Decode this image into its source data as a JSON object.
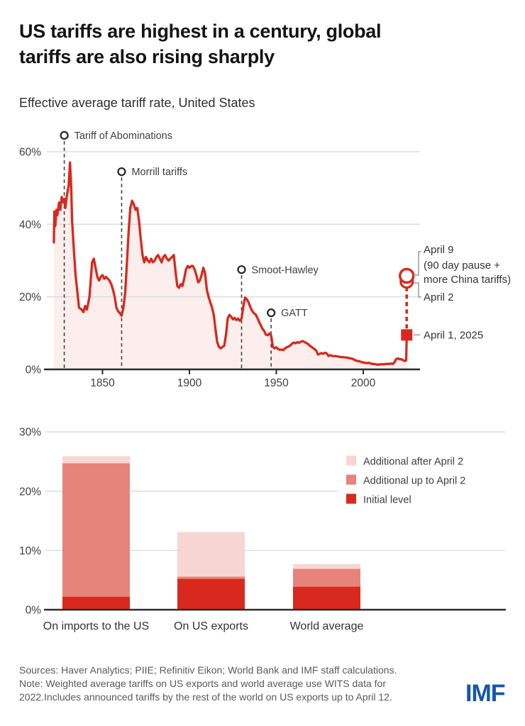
{
  "title": {
    "line1": "US tariffs are highest in a century, global",
    "line2": "tariffs are also rising sharply"
  },
  "subtitle": "Effective average tariff rate, United States",
  "colors": {
    "line_red": "#d7291d",
    "area_fill": "#fbeeec",
    "bar_initial": "#d7291d",
    "bar_up_to_apr2": "#e6837a",
    "bar_after_apr2": "#f7d5d2",
    "gridline": "#d8d8d8",
    "axis": "#2b2b2b",
    "event_dash": "#4d4d4d",
    "connector_gray": "#9b9b9b",
    "text_dark": "#333333",
    "imf_blue": "#1757a6"
  },
  "chart_data": [
    {
      "type": "area",
      "title": "Effective average tariff rate, United States",
      "xlabel": "",
      "ylabel": "Effective average tariff rate (%)",
      "xlim": [
        1820,
        2032
      ],
      "ylim": [
        0,
        65
      ],
      "yticks": [
        0,
        20,
        40,
        60
      ],
      "ytick_labels": [
        "0%",
        "20%",
        "40%",
        "60%"
      ],
      "xticks": [
        1850,
        1900,
        1950,
        2000
      ],
      "grid": "horizontal",
      "series": [
        {
          "name": "Effective average tariff rate, United States",
          "points": [
            [
              1822,
              35
            ],
            [
              1822.3,
              43.5
            ],
            [
              1822.8,
              39.5
            ],
            [
              1823.5,
              44
            ],
            [
              1824,
              42.5
            ],
            [
              1825,
              46
            ],
            [
              1825.7,
              44
            ],
            [
              1826.5,
              47.5
            ],
            [
              1827.5,
              46
            ],
            [
              1828,
              47
            ],
            [
              1828.6,
              44.5
            ],
            [
              1829.5,
              48
            ],
            [
              1830.5,
              50.5
            ],
            [
              1831.3,
              57
            ],
            [
              1832,
              50
            ],
            [
              1832.5,
              41
            ],
            [
              1833.5,
              33
            ],
            [
              1834.5,
              26
            ],
            [
              1835.5,
              21.5
            ],
            [
              1836.5,
              17
            ],
            [
              1838,
              16.5
            ],
            [
              1839,
              15.8
            ],
            [
              1840,
              17.5
            ],
            [
              1841,
              16.5
            ],
            [
              1842.5,
              20
            ],
            [
              1844,
              29.5
            ],
            [
              1845,
              30.5
            ],
            [
              1846,
              28
            ],
            [
              1847,
              25.5
            ],
            [
              1848,
              24.5
            ],
            [
              1849,
              25.5
            ],
            [
              1850,
              26
            ],
            [
              1851,
              25
            ],
            [
              1852,
              25.5
            ],
            [
              1853,
              25
            ],
            [
              1854,
              24.5
            ],
            [
              1855,
              23.5
            ],
            [
              1856,
              22
            ],
            [
              1857,
              20
            ],
            [
              1858,
              17
            ],
            [
              1859,
              16
            ],
            [
              1860,
              15.5
            ],
            [
              1861,
              14.8
            ],
            [
              1862,
              17
            ],
            [
              1863,
              21
            ],
            [
              1864,
              29
            ],
            [
              1865,
              38
            ],
            [
              1866,
              44.5
            ],
            [
              1867,
              46.5
            ],
            [
              1868,
              45.5
            ],
            [
              1869,
              44
            ],
            [
              1870,
              44.5
            ],
            [
              1871,
              41
            ],
            [
              1872,
              36
            ],
            [
              1873,
              31.5
            ],
            [
              1874,
              29.5
            ],
            [
              1875,
              31
            ],
            [
              1876,
              30
            ],
            [
              1877,
              29.5
            ],
            [
              1878,
              30.5
            ],
            [
              1879,
              29.5
            ],
            [
              1880,
              30
            ],
            [
              1881,
              31
            ],
            [
              1882,
              31.5
            ],
            [
              1883,
              30.5
            ],
            [
              1884,
              29.5
            ],
            [
              1885,
              31
            ],
            [
              1886,
              31.5
            ],
            [
              1887,
              30.5
            ],
            [
              1888,
              30
            ],
            [
              1889,
              30.5
            ],
            [
              1890,
              31
            ],
            [
              1891,
              31.5
            ],
            [
              1892,
              27
            ],
            [
              1893,
              23
            ],
            [
              1894,
              22.5
            ],
            [
              1895,
              23.5
            ],
            [
              1896,
              23
            ],
            [
              1897,
              25
            ],
            [
              1898,
              27.5
            ],
            [
              1899,
              28.5
            ],
            [
              1900,
              28
            ],
            [
              1901,
              28.5
            ],
            [
              1902,
              28.5
            ],
            [
              1903,
              27.5
            ],
            [
              1904,
              26
            ],
            [
              1905,
              24
            ],
            [
              1906,
              24.5
            ],
            [
              1907,
              26
            ],
            [
              1908,
              28
            ],
            [
              1909,
              26.5
            ],
            [
              1910,
              22
            ],
            [
              1911,
              20
            ],
            [
              1912,
              18.5
            ],
            [
              1913,
              17
            ],
            [
              1914,
              15
            ],
            [
              1915,
              11
            ],
            [
              1916,
              7.5
            ],
            [
              1917,
              6.2
            ],
            [
              1918,
              5.8
            ],
            [
              1919,
              6.2
            ],
            [
              1920,
              6.5
            ],
            [
              1921,
              9.5
            ],
            [
              1922,
              14
            ],
            [
              1923,
              15
            ],
            [
              1924,
              14.5
            ],
            [
              1925,
              13.8
            ],
            [
              1926,
              14.2
            ],
            [
              1927,
              13.6
            ],
            [
              1928,
              14
            ],
            [
              1929,
              13.4
            ],
            [
              1930,
              14
            ],
            [
              1931,
              17.5
            ],
            [
              1932,
              19.8
            ],
            [
              1933,
              19.3
            ],
            [
              1934,
              18.5
            ],
            [
              1935,
              17.2
            ],
            [
              1936,
              16.2
            ],
            [
              1937,
              15.5
            ],
            [
              1938,
              15.2
            ],
            [
              1939,
              14.3
            ],
            [
              1940,
              13.2
            ],
            [
              1941,
              12.2
            ],
            [
              1942,
              11.2
            ],
            [
              1943,
              10.6
            ],
            [
              1944,
              9.6
            ],
            [
              1945,
              9.4
            ],
            [
              1946,
              9.9
            ],
            [
              1947,
              9.3
            ],
            [
              1948,
              6.2
            ],
            [
              1949,
              5.8
            ],
            [
              1950,
              6.1
            ],
            [
              1951,
              5.6
            ],
            [
              1952,
              5.4
            ],
            [
              1953,
              5.5
            ],
            [
              1954,
              5.3
            ],
            [
              1955,
              5.8
            ],
            [
              1956,
              6.1
            ],
            [
              1957,
              6.3
            ],
            [
              1958,
              6.6
            ],
            [
              1959,
              7.1
            ],
            [
              1960,
              7.4
            ],
            [
              1961,
              7.2
            ],
            [
              1962,
              7.5
            ],
            [
              1963,
              7.3
            ],
            [
              1964,
              7.6
            ],
            [
              1965,
              7.8
            ],
            [
              1966,
              7.6
            ],
            [
              1967,
              7.3
            ],
            [
              1968,
              7.1
            ],
            [
              1969,
              6.6
            ],
            [
              1970,
              6.3
            ],
            [
              1971,
              5.9
            ],
            [
              1972,
              5.6
            ],
            [
              1973,
              5.1
            ],
            [
              1974,
              4.1
            ],
            [
              1975,
              4.3
            ],
            [
              1976,
              4.5
            ],
            [
              1977,
              4.3
            ],
            [
              1978,
              4.6
            ],
            [
              1979,
              4.4
            ],
            [
              1980,
              3.7
            ],
            [
              1981,
              3.9
            ],
            [
              1982,
              3.8
            ],
            [
              1983,
              3.6
            ],
            [
              1984,
              3.7
            ],
            [
              1985,
              3.6
            ],
            [
              1986,
              3.5
            ],
            [
              1987,
              3.4
            ],
            [
              1988,
              3.4
            ],
            [
              1989,
              3.3
            ],
            [
              1990,
              3.3
            ],
            [
              1991,
              3.2
            ],
            [
              1992,
              3.1
            ],
            [
              1993,
              3.0
            ],
            [
              1994,
              2.9
            ],
            [
              1995,
              2.6
            ],
            [
              1996,
              2.4
            ],
            [
              1997,
              2.3
            ],
            [
              1998,
              2.2
            ],
            [
              1999,
              2.0
            ],
            [
              2000,
              1.9
            ],
            [
              2001,
              1.8
            ],
            [
              2002,
              1.7
            ],
            [
              2003,
              1.8
            ],
            [
              2004,
              1.7
            ],
            [
              2005,
              1.5
            ],
            [
              2006,
              1.5
            ],
            [
              2007,
              1.4
            ],
            [
              2008,
              1.3
            ],
            [
              2009,
              1.3
            ],
            [
              2010,
              1.4
            ],
            [
              2011,
              1.4
            ],
            [
              2012,
              1.4
            ],
            [
              2013,
              1.5
            ],
            [
              2014,
              1.5
            ],
            [
              2015,
              1.5
            ],
            [
              2016,
              1.6
            ],
            [
              2017,
              1.5
            ],
            [
              2018,
              2.0
            ],
            [
              2019,
              2.9
            ],
            [
              2020,
              3.0
            ],
            [
              2021,
              2.8
            ],
            [
              2022,
              2.8
            ],
            [
              2023,
              2.5
            ],
            [
              2024,
              2.3
            ],
            [
              2024.7,
              2.5
            ],
            [
              2025,
              9.5
            ]
          ]
        }
      ],
      "events": [
        {
          "year": 1828,
          "label": "Tariff of Abominations",
          "marker_pct": 64.5
        },
        {
          "year": 1861,
          "label": "Morrill tariffs",
          "marker_pct": 54.5
        },
        {
          "year": 1930,
          "label": "Smoot-Hawley",
          "marker_pct": 27.5
        },
        {
          "year": 1947,
          "label": "GATT",
          "marker_pct": 15.6
        }
      ],
      "april_markers": {
        "year": 2025,
        "april1": {
          "value": 9.5,
          "label": "April 1, 2025"
        },
        "april2": {
          "value": 24.2,
          "label": "April 2"
        },
        "april9": {
          "value": 25.8,
          "label": "April 9",
          "sublabel1": "(90 day pause +",
          "sublabel2": "more China tariffs)"
        }
      }
    },
    {
      "type": "bar",
      "stacked": true,
      "categories": [
        "On imports to the US",
        "On US exports",
        "World average"
      ],
      "series": [
        {
          "name": "Initial level",
          "values": [
            2.2,
            5.2,
            3.9
          ]
        },
        {
          "name": "Additional up to April 2",
          "values": [
            22.5,
            0.4,
            3.0
          ]
        },
        {
          "name": "Additional after April 2",
          "values": [
            1.2,
            7.5,
            0.8
          ]
        }
      ],
      "totals": [
        25.9,
        13.1,
        7.7
      ],
      "ylim": [
        0,
        32
      ],
      "yticks": [
        0,
        10,
        20,
        30
      ],
      "ytick_labels": [
        "0%",
        "10%",
        "20%",
        "30%"
      ],
      "grid": "horizontal",
      "legend_position": "upper right",
      "legend": [
        {
          "label": "Additional after April 2",
          "color_key": "bar_after_apr2"
        },
        {
          "label": "Additional up to April 2",
          "color_key": "bar_up_to_apr2"
        },
        {
          "label": "Initial level",
          "color_key": "bar_initial"
        }
      ]
    }
  ],
  "footer": {
    "line1": "Sources: Haver Analytics; PIIE; Refinitiv Eikon; World Bank and IMF staff calculations.",
    "line2": "Note: Weighted average tariffs on US exports and world average use WITS data for",
    "line3": "2022.Includes announced tariffs by the rest of the world on US exports up to April 12."
  },
  "logo": "IMF"
}
